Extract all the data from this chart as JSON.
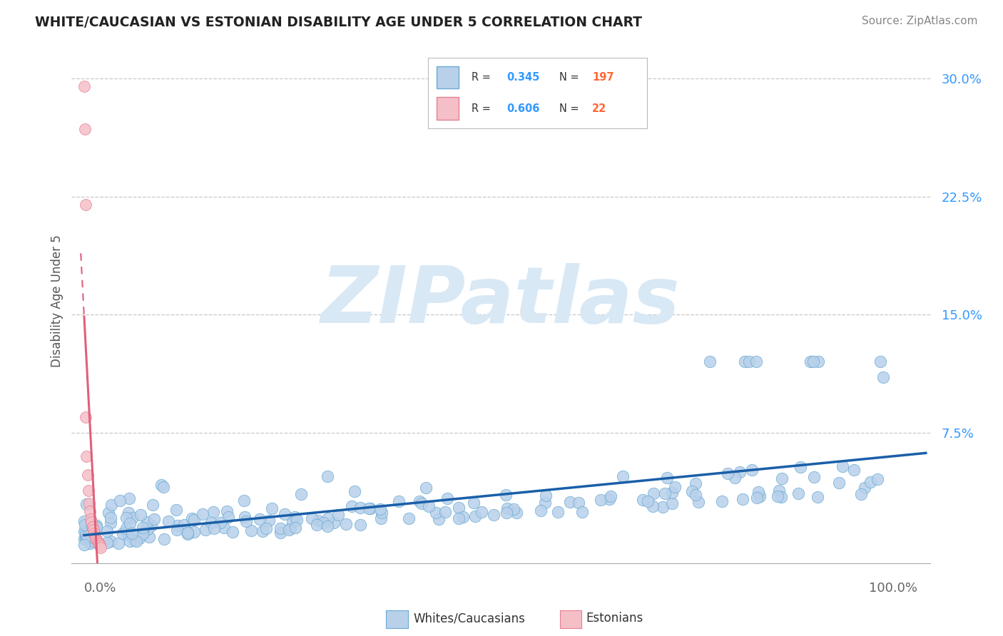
{
  "title": "WHITE/CAUCASIAN VS ESTONIAN DISABILITY AGE UNDER 5 CORRELATION CHART",
  "source_text": "Source: ZipAtlas.com",
  "ylabel": "Disability Age Under 5",
  "ytick_vals": [
    0.075,
    0.15,
    0.225,
    0.3
  ],
  "ytick_labels": [
    "7.5%",
    "15.0%",
    "22.5%",
    "30.0%"
  ],
  "xlim": [
    -0.015,
    1.015
  ],
  "ylim": [
    -0.008,
    0.325
  ],
  "legend_entries": [
    {
      "label": "Whites/Caucasians",
      "R": "0.345",
      "N": "197",
      "face_color": "#b8d0ea",
      "edge_color": "#6aaad4"
    },
    {
      "label": "Estonians",
      "R": "0.606",
      "N": "22",
      "face_color": "#f5bfc8",
      "edge_color": "#e48090"
    }
  ],
  "trendline_blue_color": "#1a5fa8",
  "trendline_pink_color": "#e0607a",
  "grid_color": "#c8c8c8",
  "watermark_text": "ZIPatlas",
  "watermark_color": "#d8e8f5",
  "legend_R_color": "#3399ff",
  "legend_N_color": "#ff6633",
  "title_color": "#222222",
  "source_color": "#888888",
  "ylabel_color": "#555555",
  "tick_label_color": "#3399ff",
  "xtick_label_color": "#666666"
}
